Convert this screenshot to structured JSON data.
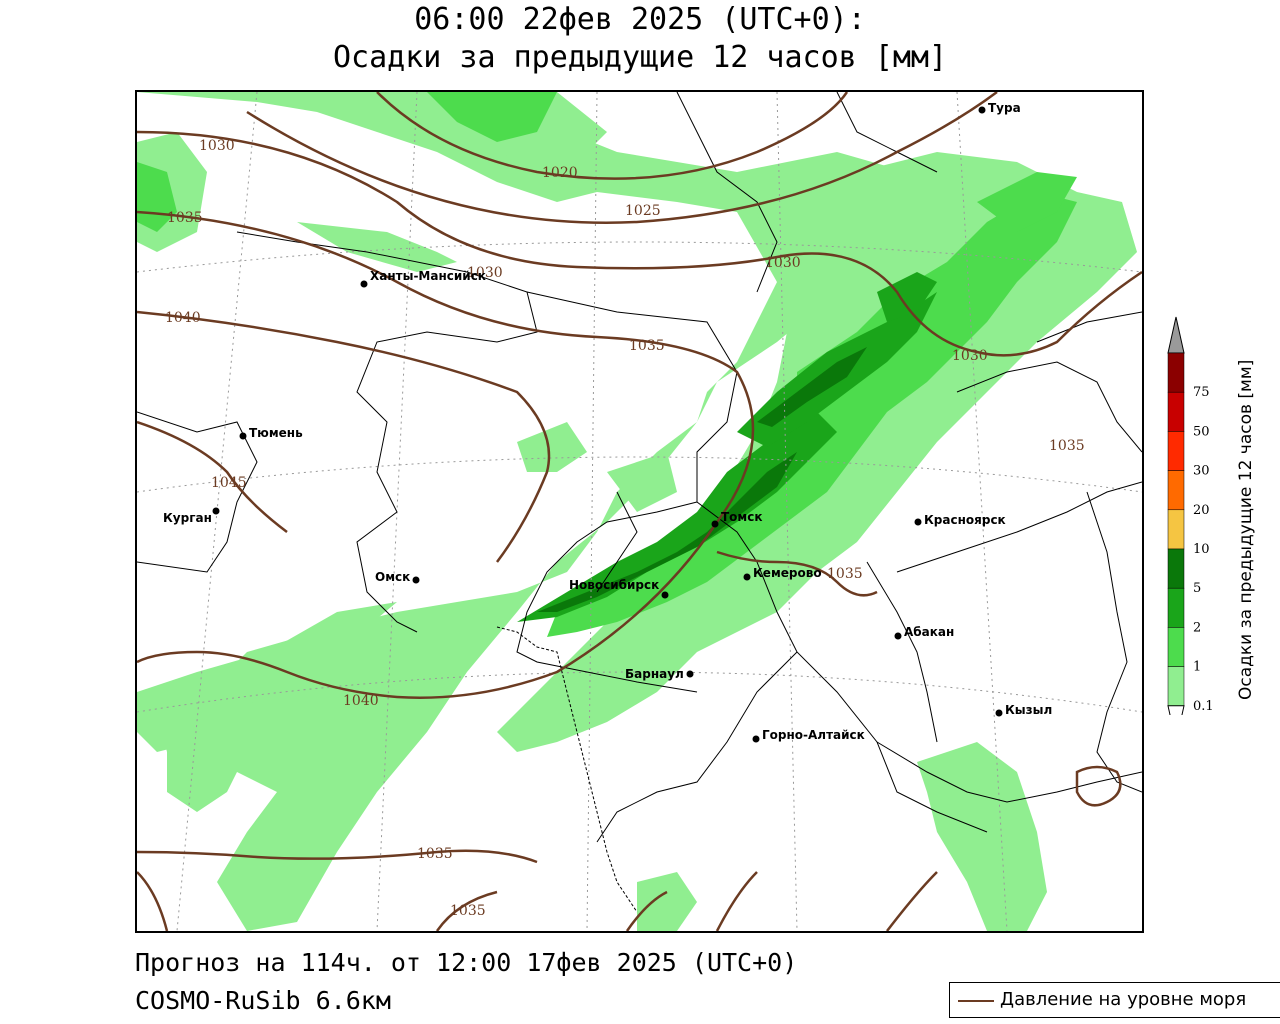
{
  "title": {
    "line1": "06:00 22фев 2025 (UTC+0):",
    "line2": "Осадки за предыдущие 12 часов [мм]"
  },
  "footer": {
    "forecast": "Прогноз на 114ч. от 12:00 17фев 2025 (UTC+0)",
    "model": "COSMO-RuSib 6.6км"
  },
  "legend": {
    "pressure_label": "Давление на уровне моря",
    "pressure_color": "#6b3b22"
  },
  "colorbar": {
    "title": "Осадки за предыдущие 12 часов [мм]",
    "ticks": [
      "0.1",
      "1",
      "2",
      "5",
      "10",
      "20",
      "30",
      "50",
      "75"
    ],
    "colors": [
      "#90ee90",
      "#4ddc4d",
      "#1aa51a",
      "#0a780a",
      "#f5c542",
      "#ff6a00",
      "#ff2a00",
      "#c80000",
      "#8b0000",
      "#9a9a9a"
    ]
  },
  "cities": {
    "tura": "Тура",
    "khanty": "Ханты-Мансийск",
    "tyumen": "Тюмень",
    "kurgan": "Курган",
    "omsk": "Омск",
    "novosibirsk": "Новосибирск",
    "tomsk": "Томск",
    "kemerovo": "Кемерово",
    "krasnoyarsk": "Красноярск",
    "abakan": "Абакан",
    "barnaul": "Барнаул",
    "gorno": "Горно-Алтайск",
    "kyzyl": "Кызыл"
  },
  "isobars": {
    "l1020": "1020",
    "l1025": "1025",
    "l1030": "1030",
    "l1035": "1035",
    "l1040": "1040",
    "l1045": "1045"
  }
}
